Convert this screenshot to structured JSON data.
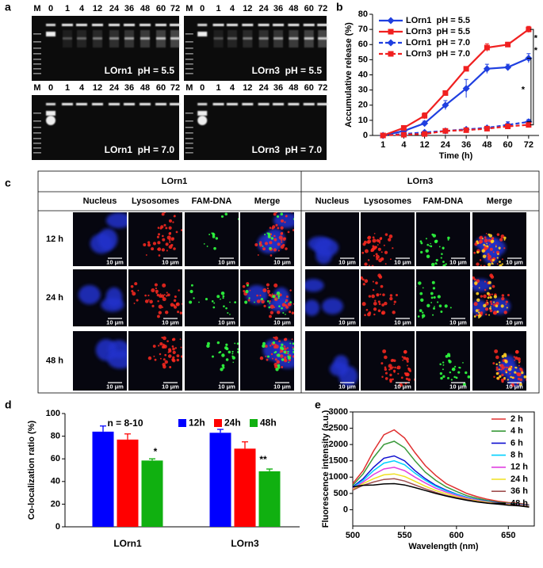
{
  "panel_labels": [
    "a",
    "b",
    "c",
    "d",
    "e"
  ],
  "gels": {
    "lanes": [
      "M",
      "0",
      "1",
      "4",
      "12",
      "24",
      "36",
      "48",
      "60",
      "72"
    ],
    "labels": [
      "LOrn1  pH = 5.5",
      "LOrn3  pH = 5.5",
      "LOrn1  pH = 7.0",
      "LOrn3  pH = 7.0"
    ]
  },
  "microscopy": {
    "groups": [
      "LOrn1",
      "LOrn3"
    ],
    "channels": [
      "Nucleus",
      "Lysosomes",
      "FAM-DNA",
      "Merge"
    ],
    "rows": [
      "12 h",
      "24 h",
      "48 h"
    ],
    "scale_bar": "10 μm"
  },
  "chart_data": [
    {
      "type": "line",
      "x_label": "Time (h)",
      "y_label": "Accumulative release (%)",
      "categories": [
        "1",
        "4",
        "12",
        "24",
        "36",
        "48",
        "60",
        "72"
      ],
      "series": [
        {
          "name": "LOrn1  pH = 5.5",
          "color": "#1f3fe0",
          "marker": "diamond",
          "linestyle": "solid",
          "values": [
            0,
            3,
            8,
            20,
            31,
            44,
            45,
            51
          ],
          "errors": [
            1,
            3,
            1.5,
            3,
            6,
            3,
            2,
            3
          ]
        },
        {
          "name": "LOrn3  pH = 5.5",
          "color": "#f02020",
          "marker": "square",
          "linestyle": "solid",
          "values": [
            0,
            5,
            13,
            28,
            44,
            58,
            60,
            70
          ],
          "errors": [
            1,
            1,
            2,
            1,
            1,
            2.5,
            1.5,
            2
          ]
        },
        {
          "name": "LOrn1  pH = 7.0",
          "color": "#1f3fe0",
          "marker": "diamond",
          "linestyle": "dashed",
          "values": [
            0,
            1,
            2,
            3,
            4,
            5,
            7,
            9
          ],
          "errors": [
            0.5,
            0.5,
            0.5,
            0.5,
            0.5,
            1,
            2,
            1.5
          ]
        },
        {
          "name": "LOrn3  pH = 7.0",
          "color": "#f02020",
          "marker": "square",
          "linestyle": "dashed",
          "values": [
            0,
            0.5,
            1,
            3,
            3.5,
            4.5,
            6,
            7
          ],
          "errors": [
            0.5,
            0.5,
            0.5,
            0.5,
            0.5,
            0.5,
            1,
            1
          ]
        }
      ],
      "ylim": [
        0,
        80
      ],
      "yticks": [
        0,
        10,
        20,
        30,
        40,
        50,
        60,
        70,
        80
      ],
      "legend": "upper left",
      "annotations": [
        "*",
        "*",
        "*"
      ]
    },
    {
      "type": "bar",
      "y_label": "Co-localization ratio (%)",
      "categories": [
        "LOrn1",
        "LOrn3"
      ],
      "series": [
        {
          "name": "12h",
          "color": "#0000ff",
          "values": [
            84,
            83
          ],
          "errors": [
            5,
            3
          ]
        },
        {
          "name": "24h",
          "color": "#ff0000",
          "values": [
            77,
            69
          ],
          "errors": [
            5,
            6
          ]
        },
        {
          "name": "48h",
          "color": "#10b010",
          "values": [
            58.5,
            49
          ],
          "errors": [
            1.5,
            2
          ]
        }
      ],
      "ylim": [
        0,
        100
      ],
      "yticks": [
        0,
        20,
        40,
        60,
        80,
        100
      ],
      "legend": "upper right",
      "annotations": [
        "n = 8-10",
        "*",
        "**"
      ]
    },
    {
      "type": "line",
      "x_label": "Wavelength (nm)",
      "y_label": "Fluorescence intensity (a.u.)",
      "x": [
        500,
        510,
        520,
        530,
        540,
        550,
        560,
        570,
        580,
        590,
        600,
        610,
        620,
        630,
        640,
        650,
        660,
        670
      ],
      "series": [
        {
          "name": "2 h",
          "color": "#e03030",
          "values": [
            800,
            1200,
            1800,
            2300,
            2450,
            2200,
            1750,
            1350,
            1050,
            800,
            650,
            500,
            400,
            320,
            260,
            220,
            200,
            150
          ]
        },
        {
          "name": "4 h",
          "color": "#3a9a3a",
          "values": [
            750,
            1100,
            1600,
            2000,
            2100,
            1900,
            1500,
            1150,
            900,
            700,
            560,
            430,
            350,
            280,
            230,
            200,
            180,
            140
          ]
        },
        {
          "name": "6 h",
          "color": "#1010d0",
          "values": [
            700,
            950,
            1300,
            1580,
            1650,
            1500,
            1200,
            950,
            750,
            600,
            480,
            380,
            310,
            260,
            210,
            180,
            160,
            130
          ]
        },
        {
          "name": "8 h",
          "color": "#00d0ff",
          "values": [
            680,
            900,
            1200,
            1430,
            1500,
            1380,
            1120,
            900,
            720,
            580,
            470,
            370,
            300,
            250,
            200,
            170,
            150,
            120
          ]
        },
        {
          "name": "12 h",
          "color": "#e040e0",
          "values": [
            650,
            850,
            1080,
            1250,
            1300,
            1200,
            1000,
            820,
            660,
            540,
            440,
            350,
            290,
            240,
            200,
            170,
            150,
            110
          ]
        },
        {
          "name": "24 h",
          "color": "#f0e020",
          "values": [
            620,
            800,
            950,
            1070,
            1100,
            1020,
            870,
            720,
            590,
            490,
            400,
            330,
            270,
            230,
            190,
            160,
            140,
            100
          ]
        },
        {
          "name": "36 h",
          "color": "#a05050",
          "values": [
            600,
            750,
            850,
            930,
            950,
            880,
            760,
            640,
            530,
            440,
            370,
            310,
            250,
            210,
            180,
            150,
            130,
            90
          ]
        },
        {
          "name": "48 h",
          "color": "#000000",
          "values": [
            700,
            750,
            760,
            790,
            800,
            760,
            680,
            590,
            500,
            420,
            350,
            290,
            240,
            200,
            170,
            140,
            120,
            80
          ]
        }
      ],
      "xlim": [
        500,
        675
      ],
      "xticks": [
        500,
        550,
        600,
        650
      ],
      "ylim": [
        -500,
        3000
      ],
      "yticks": [
        0,
        500,
        1000,
        1500,
        2000,
        2500,
        3000
      ],
      "legend": "right"
    }
  ]
}
